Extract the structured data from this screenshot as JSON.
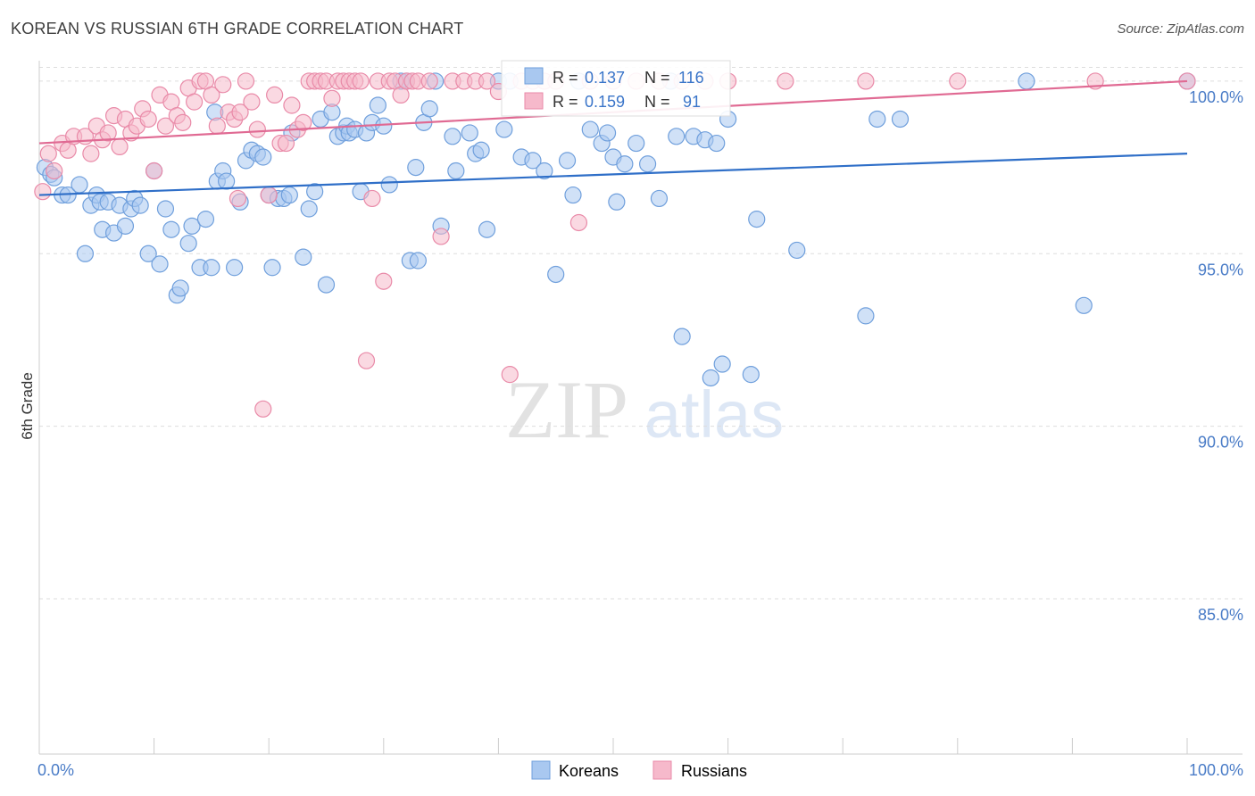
{
  "header": {
    "title": "KOREAN VS RUSSIAN 6TH GRADE CORRELATION CHART",
    "source": "Source: ZipAtlas.com"
  },
  "watermark": {
    "zip": "ZIP",
    "atlas": "atlas"
  },
  "stats": {
    "koreans": {
      "r_label": "R = ",
      "r_value": "0.137",
      "n_label": "N = ",
      "n_value": "116"
    },
    "russians": {
      "r_label": "R = ",
      "r_value": "0.159",
      "n_label": "N = ",
      "n_value": " 91"
    }
  },
  "legend": {
    "koreans": "Koreans",
    "russians": "Russians"
  },
  "colors": {
    "korean_fill": "#a9c8f0",
    "korean_stroke": "#6f9fdc",
    "korean_line": "#2f6fc8",
    "russian_fill": "#f6b9cb",
    "russian_stroke": "#e98aa8",
    "russian_line": "#e06a93",
    "tick_label": "#4a7cc7",
    "grid": "#dddddd"
  },
  "chart_data": {
    "type": "scatter",
    "title": "KOREAN VS RUSSIAN 6TH GRADE CORRELATION CHART",
    "xlabel": "",
    "ylabel": "6th Grade",
    "xlim": [
      0,
      100
    ],
    "ylim": [
      80.5,
      100.8
    ],
    "x_tick_labels": [
      "0.0%",
      "100.0%"
    ],
    "y_ticks": [
      85,
      90,
      95,
      100
    ],
    "y_tick_labels": [
      "85.0%",
      "90.0%",
      "95.0%",
      "100.0%"
    ],
    "grid": true,
    "legend_position": "bottom-center",
    "series": [
      {
        "name": "Koreans",
        "r": 0.137,
        "n": 116,
        "trend": [
          [
            0,
            96.7
          ],
          [
            100,
            97.9
          ]
        ],
        "points": [
          [
            0.5,
            97.5
          ],
          [
            1,
            97.3
          ],
          [
            1.3,
            97.2
          ],
          [
            2,
            96.7
          ],
          [
            2.5,
            96.7
          ],
          [
            3.5,
            97
          ],
          [
            4,
            95
          ],
          [
            4.5,
            96.4
          ],
          [
            5,
            96.7
          ],
          [
            5.3,
            96.5
          ],
          [
            5.5,
            95.7
          ],
          [
            6,
            96.5
          ],
          [
            6.5,
            95.6
          ],
          [
            7,
            96.4
          ],
          [
            7.5,
            95.8
          ],
          [
            8,
            96.3
          ],
          [
            8.3,
            96.6
          ],
          [
            8.8,
            96.4
          ],
          [
            9.5,
            95
          ],
          [
            10,
            97.4
          ],
          [
            10.5,
            94.7
          ],
          [
            11,
            96.3
          ],
          [
            11.5,
            95.7
          ],
          [
            12,
            93.8
          ],
          [
            12.3,
            94
          ],
          [
            13,
            95.3
          ],
          [
            13.3,
            95.8
          ],
          [
            14,
            94.6
          ],
          [
            14.5,
            96
          ],
          [
            15,
            94.6
          ],
          [
            15.3,
            99.1
          ],
          [
            15.5,
            97.1
          ],
          [
            16,
            97.4
          ],
          [
            16.3,
            97.1
          ],
          [
            17,
            94.6
          ],
          [
            17.5,
            96.5
          ],
          [
            18,
            97.7
          ],
          [
            18.5,
            98
          ],
          [
            19,
            97.9
          ],
          [
            19.5,
            97.8
          ],
          [
            20,
            96.7
          ],
          [
            20.3,
            94.6
          ],
          [
            20.8,
            96.6
          ],
          [
            21.3,
            96.6
          ],
          [
            21.8,
            96.7
          ],
          [
            22,
            98.5
          ],
          [
            23,
            94.9
          ],
          [
            23.5,
            96.3
          ],
          [
            24,
            96.8
          ],
          [
            24.5,
            98.9
          ],
          [
            25,
            94.1
          ],
          [
            25.5,
            99.1
          ],
          [
            26,
            98.4
          ],
          [
            26.5,
            98.5
          ],
          [
            26.8,
            98.7
          ],
          [
            27,
            98.5
          ],
          [
            27.5,
            98.6
          ],
          [
            28,
            96.8
          ],
          [
            28.5,
            98.5
          ],
          [
            29,
            98.8
          ],
          [
            29.5,
            99.3
          ],
          [
            30,
            98.7
          ],
          [
            30.5,
            97
          ],
          [
            31.5,
            100
          ],
          [
            32,
            100
          ],
          [
            32.3,
            94.8
          ],
          [
            32.8,
            97.5
          ],
          [
            33,
            94.8
          ],
          [
            33.5,
            98.8
          ],
          [
            34,
            99.2
          ],
          [
            34.5,
            100
          ],
          [
            35,
            95.8
          ],
          [
            36,
            98.4
          ],
          [
            36.3,
            97.4
          ],
          [
            37.5,
            98.5
          ],
          [
            38,
            97.9
          ],
          [
            38.5,
            98
          ],
          [
            39,
            95.7
          ],
          [
            40,
            100
          ],
          [
            40.5,
            98.6
          ],
          [
            41,
            100
          ],
          [
            42,
            97.8
          ],
          [
            43,
            97.7
          ],
          [
            44,
            97.4
          ],
          [
            45,
            94.4
          ],
          [
            46,
            97.7
          ],
          [
            46.5,
            96.7
          ],
          [
            47,
            100
          ],
          [
            48,
            98.6
          ],
          [
            49,
            98.2
          ],
          [
            49.5,
            98.5
          ],
          [
            50,
            97.8
          ],
          [
            50.3,
            96.5
          ],
          [
            51,
            97.6
          ],
          [
            52,
            98.2
          ],
          [
            53,
            97.6
          ],
          [
            54,
            96.6
          ],
          [
            55,
            100
          ],
          [
            55.5,
            98.4
          ],
          [
            56,
            92.6
          ],
          [
            57,
            98.4
          ],
          [
            58,
            98.3
          ],
          [
            58.5,
            91.4
          ],
          [
            59,
            98.2
          ],
          [
            59.5,
            91.8
          ],
          [
            60,
            98.9
          ],
          [
            62,
            91.5
          ],
          [
            62.5,
            96
          ],
          [
            66,
            95.1
          ],
          [
            72,
            93.2
          ],
          [
            73,
            98.9
          ],
          [
            75,
            98.9
          ],
          [
            86,
            100
          ],
          [
            91,
            93.5
          ],
          [
            100,
            100
          ]
        ]
      },
      {
        "name": "Russians",
        "r": 0.159,
        "n": 91,
        "trend": [
          [
            0,
            98.2
          ],
          [
            100,
            100
          ]
        ],
        "points": [
          [
            0.3,
            96.8
          ],
          [
            0.8,
            97.9
          ],
          [
            1.3,
            97.4
          ],
          [
            2,
            98.2
          ],
          [
            2.5,
            98
          ],
          [
            3,
            98.4
          ],
          [
            4,
            98.4
          ],
          [
            4.5,
            97.9
          ],
          [
            5,
            98.7
          ],
          [
            5.5,
            98.3
          ],
          [
            6,
            98.5
          ],
          [
            6.5,
            99
          ],
          [
            7,
            98.1
          ],
          [
            7.5,
            98.9
          ],
          [
            8,
            98.5
          ],
          [
            8.5,
            98.7
          ],
          [
            9,
            99.2
          ],
          [
            9.5,
            98.9
          ],
          [
            10,
            97.4
          ],
          [
            10.5,
            99.6
          ],
          [
            11,
            98.7
          ],
          [
            11.5,
            99.4
          ],
          [
            12,
            99
          ],
          [
            12.5,
            98.8
          ],
          [
            13,
            99.8
          ],
          [
            13.5,
            99.4
          ],
          [
            14,
            100
          ],
          [
            14.5,
            100
          ],
          [
            15,
            99.6
          ],
          [
            15.5,
            98.7
          ],
          [
            16,
            99.9
          ],
          [
            16.5,
            99.1
          ],
          [
            17,
            98.9
          ],
          [
            17.3,
            96.6
          ],
          [
            17.5,
            99.1
          ],
          [
            18,
            100
          ],
          [
            18.5,
            99.4
          ],
          [
            19,
            98.6
          ],
          [
            19.5,
            90.5
          ],
          [
            20,
            96.7
          ],
          [
            20.5,
            99.6
          ],
          [
            21,
            98.2
          ],
          [
            21.5,
            98.2
          ],
          [
            22,
            99.3
          ],
          [
            22.5,
            98.6
          ],
          [
            23,
            98.8
          ],
          [
            23.5,
            100
          ],
          [
            24,
            100
          ],
          [
            24.5,
            100
          ],
          [
            25,
            100
          ],
          [
            25.5,
            99.5
          ],
          [
            26,
            100
          ],
          [
            26.5,
            100
          ],
          [
            27,
            100
          ],
          [
            27.5,
            100
          ],
          [
            28,
            100
          ],
          [
            28.5,
            91.9
          ],
          [
            29,
            96.6
          ],
          [
            29.5,
            100
          ],
          [
            30,
            94.2
          ],
          [
            30.5,
            100
          ],
          [
            31,
            100
          ],
          [
            31.5,
            99.6
          ],
          [
            32,
            100
          ],
          [
            32.5,
            100
          ],
          [
            33,
            100
          ],
          [
            34,
            100
          ],
          [
            35,
            95.5
          ],
          [
            36,
            100
          ],
          [
            37,
            100
          ],
          [
            38,
            100
          ],
          [
            39,
            100
          ],
          [
            40,
            99.7
          ],
          [
            41,
            91.5
          ],
          [
            42,
            100
          ],
          [
            43,
            100
          ],
          [
            44,
            100
          ],
          [
            45,
            100
          ],
          [
            47,
            95.9
          ],
          [
            48,
            100
          ],
          [
            50,
            100
          ],
          [
            52,
            100
          ],
          [
            54,
            100
          ],
          [
            56,
            100
          ],
          [
            58,
            100
          ],
          [
            60,
            100
          ],
          [
            65,
            100
          ],
          [
            72,
            100
          ],
          [
            80,
            100
          ],
          [
            92,
            100
          ],
          [
            100,
            100
          ]
        ]
      }
    ]
  }
}
